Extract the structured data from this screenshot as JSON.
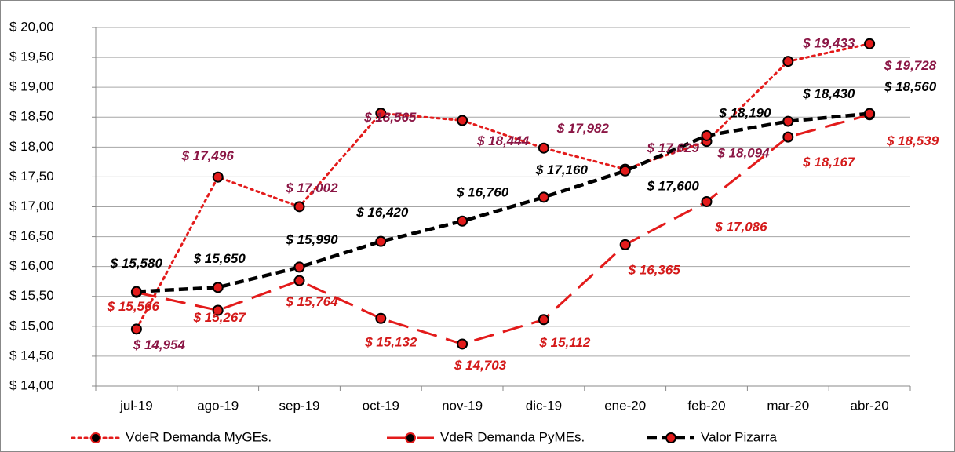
{
  "chart_data": {
    "type": "line",
    "categories": [
      "jul-19",
      "ago-19",
      "sep-19",
      "oct-19",
      "nov-19",
      "dic-19",
      "ene-20",
      "feb-20",
      "mar-20",
      "abr-20"
    ],
    "ylim": [
      14,
      20
    ],
    "yticks": [
      {
        "value": 14,
        "label": "$ 14,00"
      },
      {
        "value": 14.5,
        "label": "$ 14,50"
      },
      {
        "value": 15,
        "label": "$ 15,00"
      },
      {
        "value": 15.5,
        "label": "$ 15,50"
      },
      {
        "value": 16,
        "label": "$ 16,00"
      },
      {
        "value": 16.5,
        "label": "$ 16,50"
      },
      {
        "value": 17,
        "label": "$ 17,00"
      },
      {
        "value": 17.5,
        "label": "$ 17,50"
      },
      {
        "value": 18,
        "label": "$ 18,00"
      },
      {
        "value": 18.5,
        "label": "$ 18,50"
      },
      {
        "value": 19,
        "label": "$ 19,00"
      },
      {
        "value": 19.5,
        "label": "$ 19,50"
      },
      {
        "value": 20,
        "label": "$ 20,00"
      }
    ],
    "grid": true,
    "legend": "bottom",
    "series": [
      {
        "name": "VdeR Demanda MyGEs.",
        "color": "#e31b1b",
        "line_style": "dotted",
        "marker_color": "#e31b1b",
        "label_color": "#8b1645",
        "values": [
          14.954,
          17.496,
          17.002,
          18.565,
          18.444,
          17.982,
          17.629,
          18.094,
          19.433,
          19.728
        ],
        "value_labels": [
          "$ 14,954",
          "$ 17,496",
          "$ 17,002",
          "$ 18,565",
          "$ 18,444",
          "$ 17,982",
          "$ 17,629",
          "$ 18,094",
          "$ 19,433",
          "$ 19,728"
        ]
      },
      {
        "name": "VdeR Demanda PyMEs.",
        "color": "#e31b1b",
        "line_style": "dashed",
        "marker_color": "#e31b1b",
        "label_color": "#d41a1a",
        "values": [
          15.566,
          15.267,
          15.764,
          15.132,
          14.703,
          15.112,
          16.365,
          17.086,
          18.167,
          18.539
        ],
        "value_labels": [
          "$ 15,566",
          "$ 15,267",
          "$ 15,764",
          "$ 15,132",
          "$ 14,703",
          "$ 15,112",
          "$ 16,365",
          "$ 17,086",
          "$ 18,167",
          "$ 18,539"
        ]
      },
      {
        "name": "Valor Pizarra",
        "color": "#000000",
        "line_style": "short-dashed",
        "marker_color": "#e31b1b",
        "label_color": "#000000",
        "values": [
          15.58,
          15.65,
          15.99,
          16.42,
          16.76,
          17.16,
          17.6,
          18.19,
          18.43,
          18.56
        ],
        "value_labels": [
          "$ 15,580",
          "$ 15,650",
          "$ 15,990",
          "$ 16,420",
          "$ 16,760",
          "$ 17,160",
          "$ 17,600",
          "$ 18,190",
          "$ 18,430",
          "$ 18,560"
        ]
      }
    ]
  }
}
